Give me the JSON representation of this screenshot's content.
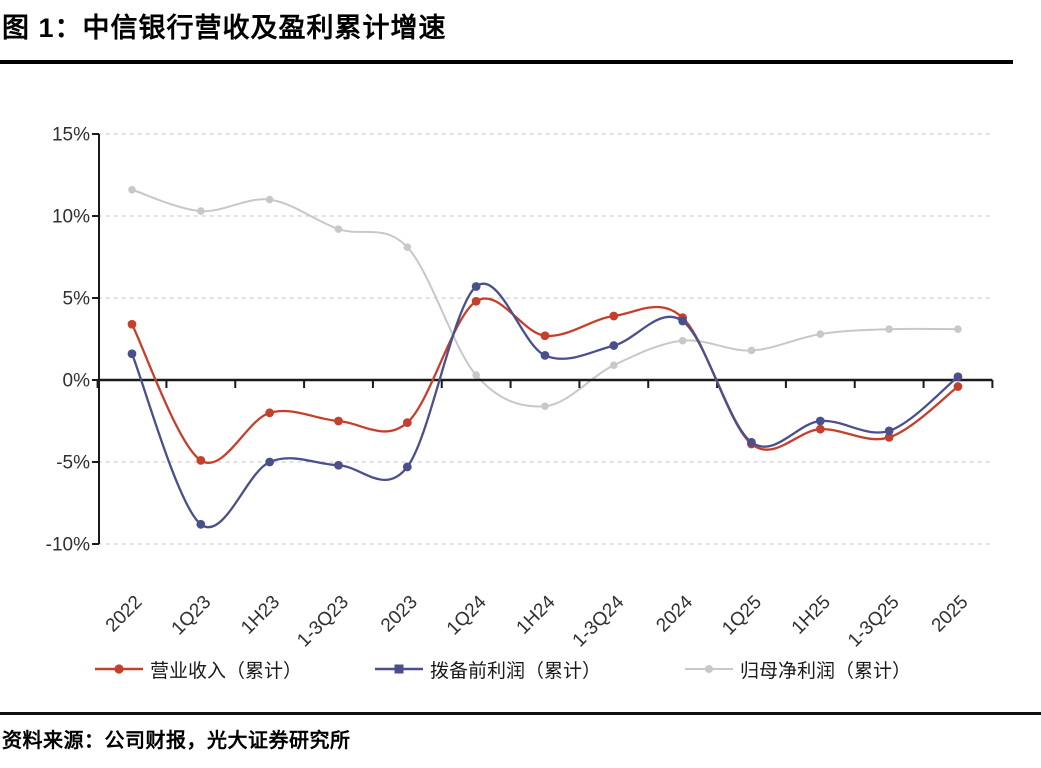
{
  "header": {
    "title": "图 1：中信银行营收及盈利累计增速"
  },
  "footer": {
    "source": "资料来源：公司财报，光大证券研究所"
  },
  "chart_data": {
    "type": "line",
    "smooth": true,
    "title": "图 1：中信银行营收及盈利累计增速",
    "xlabel": "",
    "ylabel": "",
    "categories": [
      "2022",
      "1Q23",
      "1H23",
      "1-3Q23",
      "2023",
      "1Q24",
      "1H24",
      "1-3Q24",
      "2024",
      "1Q25",
      "1H25",
      "1-3Q25",
      "2025"
    ],
    "series": [
      {
        "key": "revenue",
        "name": "营业收入（累计）",
        "color": "#c5402c",
        "marker": "circle",
        "line_width": 2.3,
        "values": [
          3.4,
          -4.9,
          -2.0,
          -2.5,
          -2.6,
          4.8,
          2.7,
          3.9,
          3.8,
          -3.9,
          -3.0,
          -3.5,
          -0.4
        ]
      },
      {
        "key": "ppop",
        "name": "拨备前利润（累计）",
        "color": "#4b4f8c",
        "marker": "circle",
        "line_width": 2.3,
        "values": [
          1.6,
          -8.8,
          -5.0,
          -5.2,
          -5.3,
          5.7,
          1.5,
          2.1,
          3.6,
          -3.8,
          -2.5,
          -3.1,
          0.2
        ]
      },
      {
        "key": "net_profit",
        "name": "归母净利润（累计）",
        "color": "#c8c8c8",
        "marker": "circle",
        "line_width": 2.0,
        "values": [
          11.6,
          10.3,
          11.0,
          9.2,
          8.1,
          0.3,
          -1.6,
          0.9,
          2.4,
          1.8,
          2.8,
          3.1,
          3.1
        ]
      }
    ],
    "ylim": [
      -10,
      15
    ],
    "yticks": [
      15,
      10,
      5,
      0,
      -5,
      -10
    ],
    "ytick_labels": [
      "15%",
      "10%",
      "5%",
      "0%",
      "-5%",
      "-10%"
    ],
    "grid": "horizontal-dashed",
    "legend_position": "bottom",
    "colors": {
      "axis": "#1a1a1a",
      "gridline": "#cfcfcf",
      "tick_text": "#303030"
    }
  }
}
